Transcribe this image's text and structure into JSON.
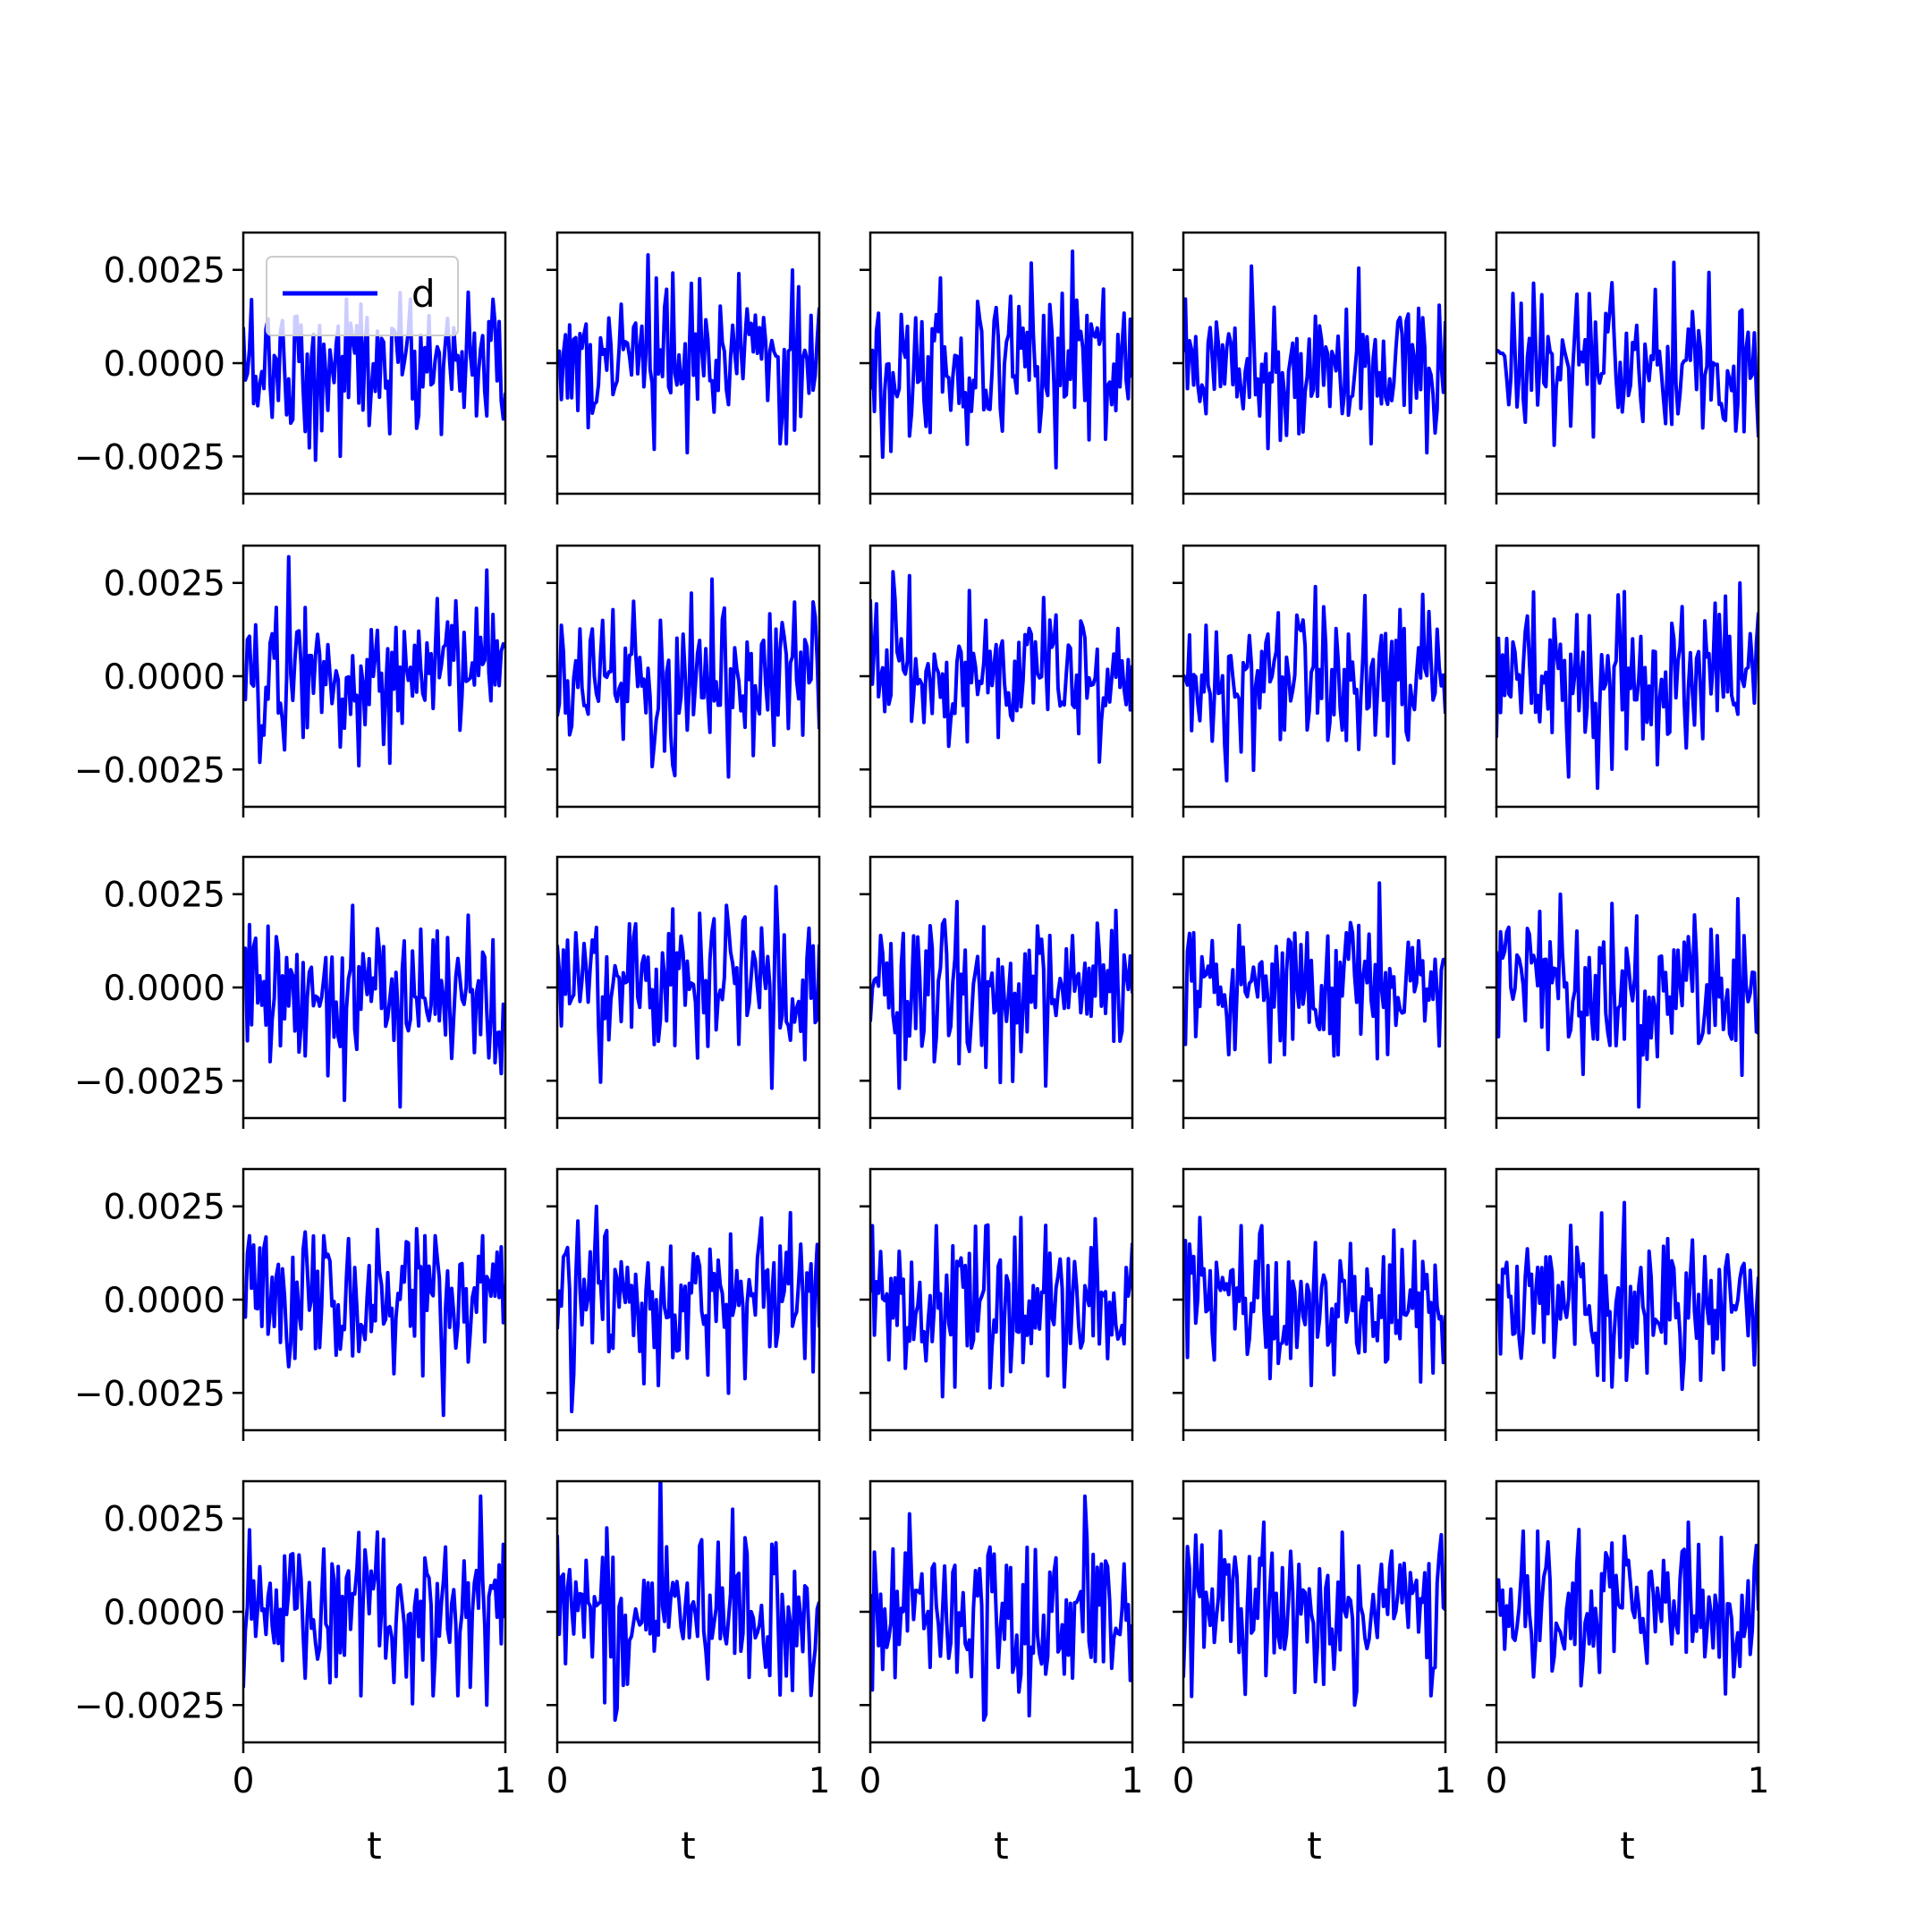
{
  "chart_data": {
    "type": "line",
    "layout": "5x5 grid of subplots, shared axes",
    "series_name": "d",
    "color": "#0000ff",
    "xlabel": "t",
    "xlim": [
      0,
      1
    ],
    "ylim": [
      -0.0035,
      0.0035
    ],
    "x_ticks": [
      0,
      1
    ],
    "x_tick_labels": [
      "0",
      "1"
    ],
    "y_ticks": [
      0.0025,
      0.0,
      -0.0025
    ],
    "y_tick_labels": [
      "0.0025",
      "0.0000",
      "−0.0025"
    ],
    "points_per_panel": 128,
    "noise_std": 0.001,
    "legend": {
      "entries": [
        "d"
      ],
      "placement": "upper-left of first panel"
    },
    "grid": false,
    "panels_extremes_approx": [
      {
        "row": 1,
        "col": 1,
        "max": 0.0019,
        "min": -0.0026
      },
      {
        "row": 1,
        "col": 2,
        "max": 0.0029,
        "min": -0.0024
      },
      {
        "row": 1,
        "col": 3,
        "max": 0.003,
        "min": -0.0028
      },
      {
        "row": 1,
        "col": 4,
        "max": 0.0026,
        "min": -0.0024
      },
      {
        "row": 1,
        "col": 5,
        "max": 0.0027,
        "min": -0.0022
      },
      {
        "row": 2,
        "col": 1,
        "max": 0.0032,
        "min": -0.0024
      },
      {
        "row": 2,
        "col": 2,
        "max": 0.0026,
        "min": -0.0027
      },
      {
        "row": 2,
        "col": 3,
        "max": 0.0028,
        "min": -0.0023
      },
      {
        "row": 2,
        "col": 4,
        "max": 0.0024,
        "min": -0.0028
      },
      {
        "row": 2,
        "col": 5,
        "max": 0.0025,
        "min": -0.003
      },
      {
        "row": 3,
        "col": 1,
        "max": 0.0022,
        "min": -0.0032
      },
      {
        "row": 3,
        "col": 2,
        "max": 0.0027,
        "min": -0.0027
      },
      {
        "row": 3,
        "col": 3,
        "max": 0.0023,
        "min": -0.0027
      },
      {
        "row": 3,
        "col": 4,
        "max": 0.0028,
        "min": -0.002
      },
      {
        "row": 3,
        "col": 5,
        "max": 0.0025,
        "min": -0.0032
      },
      {
        "row": 4,
        "col": 1,
        "max": 0.0019,
        "min": -0.0031
      },
      {
        "row": 4,
        "col": 2,
        "max": 0.0025,
        "min": -0.003
      },
      {
        "row": 4,
        "col": 3,
        "max": 0.0022,
        "min": -0.0026
      },
      {
        "row": 4,
        "col": 4,
        "max": 0.0022,
        "min": -0.0023
      },
      {
        "row": 4,
        "col": 5,
        "max": 0.0026,
        "min": -0.0024
      },
      {
        "row": 5,
        "col": 1,
        "max": 0.0031,
        "min": -0.0025
      },
      {
        "row": 5,
        "col": 2,
        "max": 0.0039,
        "min": -0.0029
      },
      {
        "row": 5,
        "col": 3,
        "max": 0.0031,
        "min": -0.0029
      },
      {
        "row": 5,
        "col": 4,
        "max": 0.0024,
        "min": -0.0025
      },
      {
        "row": 5,
        "col": 5,
        "max": 0.0024,
        "min": -0.0022
      }
    ]
  }
}
